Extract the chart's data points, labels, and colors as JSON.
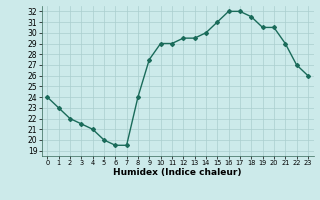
{
  "x": [
    0,
    1,
    2,
    3,
    4,
    5,
    6,
    7,
    8,
    9,
    10,
    11,
    12,
    13,
    14,
    15,
    16,
    17,
    18,
    19,
    20,
    21,
    22,
    23
  ],
  "y": [
    24,
    23,
    22,
    21.5,
    21,
    20,
    19.5,
    19.5,
    24,
    27.5,
    29,
    29,
    29.5,
    29.5,
    30,
    31,
    32,
    32,
    31.5,
    30.5,
    30.5,
    29,
    27,
    26
  ],
  "line_color": "#1a6b5a",
  "marker": "D",
  "marker_size": 2.0,
  "line_width": 1.0,
  "bg_color": "#cceaea",
  "grid_color": "#aacece",
  "xlabel": "Humidex (Indice chaleur)",
  "xlim": [
    -0.5,
    23.5
  ],
  "ylim": [
    18.5,
    32.5
  ],
  "yticks": [
    19,
    20,
    21,
    22,
    23,
    24,
    25,
    26,
    27,
    28,
    29,
    30,
    31,
    32
  ],
  "xticks": [
    0,
    1,
    2,
    3,
    4,
    5,
    6,
    7,
    8,
    9,
    10,
    11,
    12,
    13,
    14,
    15,
    16,
    17,
    18,
    19,
    20,
    21,
    22,
    23
  ],
  "xtick_labels": [
    "0",
    "1",
    "2",
    "3",
    "4",
    "5",
    "6",
    "7",
    "8",
    "9",
    "10",
    "11",
    "12",
    "13",
    "14",
    "15",
    "16",
    "17",
    "18",
    "19",
    "20",
    "21",
    "22",
    "23"
  ],
  "xlabel_fontsize": 6.5,
  "ytick_fontsize": 5.5,
  "xtick_fontsize": 4.8
}
